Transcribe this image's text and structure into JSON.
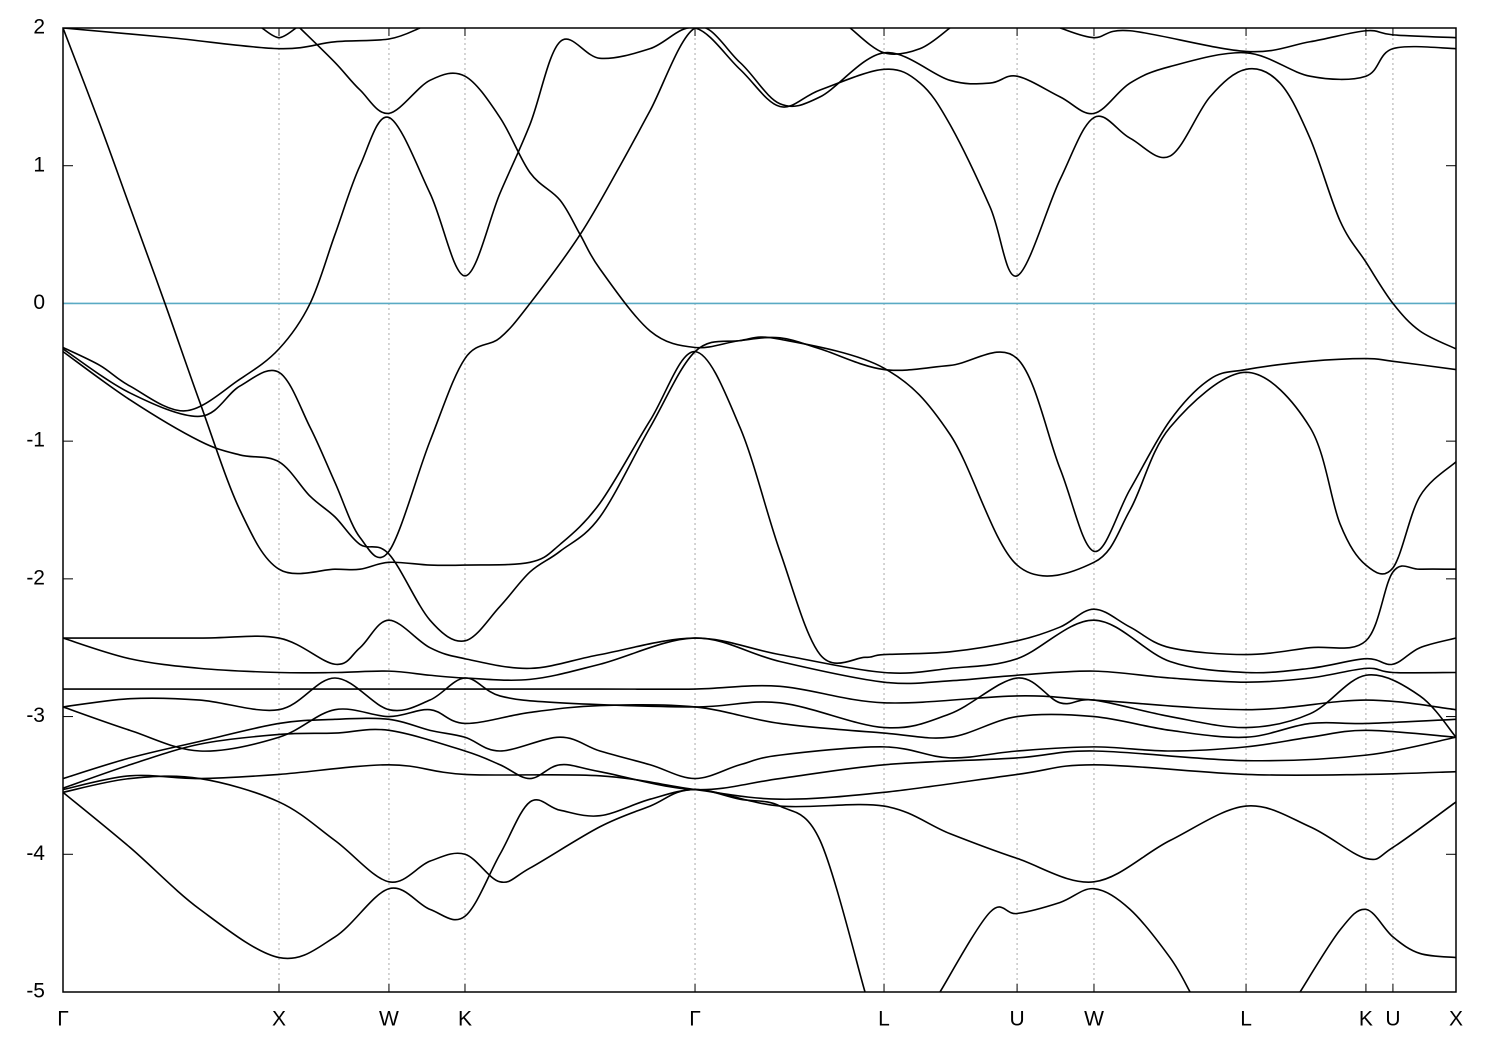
{
  "chart_data": {
    "type": "line",
    "color": "#000000",
    "xlim": [
      0,
      6.449
    ],
    "ylim": [
      -5,
      2
    ],
    "yticks": [
      -5,
      -4,
      -3,
      -2,
      -1,
      0,
      1,
      2
    ],
    "xticks": [
      {
        "value": 0,
        "label": "Γ"
      },
      {
        "value": 1.0,
        "label": "X"
      },
      {
        "value": 1.509,
        "label": "W"
      },
      {
        "value": 1.861,
        "label": "K"
      },
      {
        "value": 2.926,
        "label": "Γ"
      },
      {
        "value": 3.801,
        "label": "L"
      },
      {
        "value": 4.417,
        "label": "U"
      },
      {
        "value": 4.773,
        "label": "W"
      },
      {
        "value": 5.477,
        "label": "L"
      },
      {
        "value": 6.032,
        "label": "K"
      },
      {
        "value": 6.157,
        "label": "U"
      },
      {
        "value": 6.449,
        "label": "X"
      }
    ],
    "xgrid": true,
    "reference_line": {
      "value": 0,
      "color": "#5aaac4"
    },
    "series": [
      {
        "x": [
          0,
          0.171,
          0.31,
          0.472,
          0.634,
          0.819,
          1.0,
          1.259,
          1.375,
          1.509,
          1.699,
          1.861,
          2.162,
          2.301,
          2.486,
          2.718,
          2.926,
          3.134,
          3.319,
          3.505,
          3.713,
          3.801,
          4.106,
          4.417,
          4.616,
          4.773,
          4.94,
          5.125,
          5.477,
          5.773,
          6.032,
          6.157,
          6.282,
          6.449
        ],
        "values": [
          2.0,
          1.3,
          0.7,
          0.0,
          -0.72,
          -1.5,
          -1.93,
          -1.93,
          -1.93,
          -1.88,
          -1.9,
          -1.9,
          -1.88,
          -1.75,
          -1.45,
          -0.85,
          -0.35,
          -0.9,
          -1.8,
          -2.55,
          -2.57,
          -2.55,
          -2.53,
          -2.45,
          -2.35,
          -2.22,
          -2.35,
          -2.5,
          -2.55,
          -2.5,
          -2.45,
          -1.95,
          -1.93,
          -1.93
        ]
      },
      {
        "x": [
          0,
          0.495,
          1.0,
          1.259,
          1.509,
          1.653
        ],
        "values": [
          2.0,
          1.93,
          1.85,
          1.9,
          1.92,
          2.0
        ]
      },
      {
        "x": [
          0.921,
          1.0,
          1.079
        ],
        "values": [
          2.0,
          1.93,
          2.0
        ]
      },
      {
        "x": [
          1.097,
          1.259,
          1.375,
          1.509,
          1.699,
          1.861,
          2.023,
          2.162,
          2.301,
          2.394,
          2.486,
          2.718,
          2.926,
          3.134,
          3.319,
          3.505,
          3.801,
          4.106,
          4.417,
          4.616,
          4.773,
          4.94,
          5.125,
          5.31,
          5.477,
          5.773,
          6.032,
          6.157,
          6.449
        ],
        "values": [
          2.0,
          1.75,
          1.55,
          1.38,
          1.62,
          1.65,
          1.35,
          0.95,
          0.75,
          0.5,
          0.25,
          -0.2,
          -0.32,
          -0.27,
          -0.25,
          -0.33,
          -0.48,
          -0.45,
          -0.4,
          -1.2,
          -1.8,
          -1.35,
          -0.85,
          -0.55,
          -0.48,
          -0.42,
          -0.4,
          -0.42,
          -0.48
        ]
      },
      {
        "x": [
          0,
          0.171,
          0.31,
          0.565,
          0.819,
          1.0,
          1.144,
          1.259,
          1.375,
          1.509,
          1.699,
          1.861,
          2.023,
          2.162,
          2.301,
          2.486,
          2.718,
          2.926,
          3.134,
          3.319,
          3.505,
          3.801,
          3.968,
          4.106,
          4.292,
          4.417,
          4.616,
          4.773,
          4.94,
          5.125,
          5.31,
          5.477,
          5.634,
          5.773,
          5.912,
          6.032,
          6.157,
          6.282,
          6.449
        ],
        "values": [
          -0.32,
          -0.45,
          -0.6,
          -0.78,
          -0.55,
          -0.33,
          0.0,
          0.5,
          1.0,
          1.35,
          0.8,
          0.2,
          0.8,
          1.3,
          1.9,
          1.78,
          1.85,
          2.0,
          1.7,
          1.43,
          1.55,
          1.7,
          1.6,
          1.3,
          0.7,
          0.2,
          0.9,
          1.35,
          1.2,
          1.07,
          1.5,
          1.7,
          1.6,
          1.2,
          0.6,
          0.3,
          0.0,
          -0.2,
          -0.33
        ]
      },
      {
        "x": [
          0,
          0.31,
          0.634,
          0.819,
          1.0,
          1.144,
          1.259,
          1.375,
          1.509,
          1.699,
          1.861,
          2.023,
          2.162,
          2.394,
          2.579,
          2.718,
          2.926,
          3.134,
          3.319,
          3.505,
          3.801,
          4.106,
          4.292,
          4.417,
          4.616,
          4.773,
          4.94,
          5.125,
          5.477,
          5.773,
          6.032,
          6.157,
          6.449
        ],
        "values": [
          -0.33,
          -0.65,
          -0.82,
          -0.6,
          -0.5,
          -0.9,
          -1.3,
          -1.7,
          -1.8,
          -1.0,
          -0.4,
          -0.25,
          0.0,
          0.5,
          1.0,
          1.4,
          2.0,
          1.75,
          1.45,
          1.5,
          1.82,
          1.62,
          1.6,
          1.65,
          1.5,
          1.38,
          1.6,
          1.72,
          1.82,
          1.65,
          1.65,
          1.85,
          1.85
        ]
      },
      {
        "x": [
          0,
          0.31,
          0.634,
          0.819,
          1.0,
          1.144,
          1.259,
          1.375,
          1.509,
          1.699,
          1.861,
          2.023,
          2.162,
          2.301,
          2.486,
          2.718,
          2.926,
          3.134,
          3.319,
          3.801,
          4.106,
          4.417,
          4.773,
          4.94,
          5.125,
          5.477,
          5.773,
          5.912,
          6.032,
          6.157,
          6.282,
          6.449
        ],
        "values": [
          -0.35,
          -0.7,
          -1.0,
          -1.1,
          -1.15,
          -1.4,
          -1.55,
          -1.75,
          -1.82,
          -2.3,
          -2.45,
          -2.2,
          -1.95,
          -1.8,
          -1.55,
          -0.9,
          -0.35,
          -0.27,
          -0.26,
          -0.47,
          -0.95,
          -1.9,
          -1.88,
          -1.5,
          -0.9,
          -0.5,
          -0.9,
          -1.6,
          -1.9,
          -1.92,
          -1.4,
          -1.15
        ]
      },
      {
        "x": [
          4.616,
          4.773,
          4.94,
          5.477,
          5.773,
          6.032,
          6.157,
          6.449
        ],
        "values": [
          2.0,
          1.93,
          1.98,
          1.83,
          1.9,
          1.98,
          1.95,
          1.93
        ]
      },
      {
        "x": [
          3.644,
          3.801,
          3.968,
          4.106
        ],
        "values": [
          2.0,
          1.82,
          1.85,
          2.0
        ]
      },
      {
        "x": [
          0,
          0.634,
          1.0,
          1.259,
          1.375,
          1.509,
          1.699,
          1.861,
          2.162,
          2.486,
          2.926,
          3.319,
          3.801,
          4.106,
          4.417,
          4.773,
          5.125,
          5.477,
          5.773,
          6.032,
          6.157,
          6.282,
          6.449
        ],
        "values": [
          -2.43,
          -2.43,
          -2.43,
          -2.62,
          -2.5,
          -2.3,
          -2.5,
          -2.58,
          -2.65,
          -2.55,
          -2.43,
          -2.55,
          -2.68,
          -2.65,
          -2.58,
          -2.3,
          -2.6,
          -2.68,
          -2.65,
          -2.58,
          -2.62,
          -2.5,
          -2.43
        ]
      },
      {
        "x": [
          0,
          0.31,
          0.634,
          1.0,
          1.259,
          1.509,
          1.699,
          1.861,
          2.162,
          2.486,
          2.926,
          3.319,
          3.801,
          4.106,
          4.417,
          4.773,
          5.125,
          5.477,
          5.773,
          6.032,
          6.157,
          6.449
        ],
        "values": [
          -2.43,
          -2.58,
          -2.65,
          -2.68,
          -2.68,
          -2.67,
          -2.7,
          -2.72,
          -2.73,
          -2.62,
          -2.43,
          -2.6,
          -2.75,
          -2.74,
          -2.7,
          -2.67,
          -2.72,
          -2.75,
          -2.72,
          -2.65,
          -2.68,
          -2.68
        ]
      },
      {
        "x": [
          0,
          1.0,
          1.509,
          1.861,
          2.486,
          2.926,
          3.319,
          3.801,
          4.417,
          4.773,
          5.477,
          6.032,
          6.449
        ],
        "values": [
          -2.8,
          -2.8,
          -2.8,
          -2.8,
          -2.8,
          -2.8,
          -2.78,
          -2.9,
          -2.85,
          -2.88,
          -2.95,
          -2.88,
          -2.95
        ]
      },
      {
        "x": [
          0,
          0.31,
          0.634,
          1.0,
          1.259,
          1.509,
          1.699,
          1.861,
          2.023,
          2.301,
          2.926,
          3.319,
          3.801,
          4.106,
          4.417,
          4.616,
          4.773,
          5.125,
          5.477,
          5.773,
          6.032,
          6.282,
          6.449
        ],
        "values": [
          -2.93,
          -2.87,
          -2.88,
          -2.95,
          -2.72,
          -2.95,
          -2.88,
          -2.72,
          -2.85,
          -2.9,
          -2.93,
          -2.9,
          -3.08,
          -2.98,
          -2.72,
          -2.9,
          -2.88,
          -3.0,
          -3.08,
          -2.98,
          -2.7,
          -2.85,
          -3.15
        ]
      },
      {
        "x": [
          0,
          0.31,
          0.634,
          1.0,
          1.259,
          1.509,
          1.699,
          1.861,
          2.162,
          2.486,
          2.926,
          3.319,
          3.801,
          4.106,
          4.417,
          4.773,
          5.125,
          5.477,
          5.773,
          6.032,
          6.449
        ],
        "values": [
          -2.93,
          -3.1,
          -3.25,
          -3.15,
          -2.95,
          -3.0,
          -2.95,
          -3.05,
          -2.97,
          -2.92,
          -2.93,
          -3.05,
          -3.12,
          -3.15,
          -3.0,
          -3.0,
          -3.1,
          -3.15,
          -3.05,
          -3.05,
          -3.02
        ]
      },
      {
        "x": [
          0,
          0.31,
          0.634,
          1.0,
          1.259,
          1.509,
          1.699,
          1.861,
          2.023,
          2.301,
          2.486,
          2.718,
          2.926,
          3.134,
          3.319,
          3.801,
          4.106,
          4.417,
          4.773,
          5.125,
          5.477,
          5.773,
          6.032,
          6.449
        ],
        "values": [
          -3.45,
          -3.3,
          -3.18,
          -3.05,
          -3.02,
          -3.02,
          -3.1,
          -3.15,
          -3.25,
          -3.15,
          -3.25,
          -3.35,
          -3.45,
          -3.35,
          -3.28,
          -3.22,
          -3.3,
          -3.25,
          -3.22,
          -3.25,
          -3.22,
          -3.15,
          -3.1,
          -3.15
        ]
      },
      {
        "x": [
          0,
          0.31,
          0.634,
          1.0,
          1.259,
          1.509,
          1.861,
          2.023,
          2.162,
          2.301,
          2.486,
          2.926,
          3.319,
          3.801,
          4.417,
          4.773,
          5.477,
          6.032,
          6.449
        ],
        "values": [
          -3.52,
          -3.35,
          -3.2,
          -3.13,
          -3.12,
          -3.1,
          -3.25,
          -3.35,
          -3.45,
          -3.35,
          -3.4,
          -3.53,
          -3.45,
          -3.35,
          -3.3,
          -3.25,
          -3.32,
          -3.28,
          -3.15
        ]
      },
      {
        "x": [
          0,
          0.31,
          0.634,
          1.0,
          1.509,
          1.861,
          2.486,
          2.926,
          3.319,
          3.801,
          4.417,
          4.773,
          5.477,
          6.032,
          6.449
        ],
        "values": [
          -3.53,
          -3.43,
          -3.45,
          -3.42,
          -3.35,
          -3.42,
          -3.43,
          -3.53,
          -3.6,
          -3.55,
          -3.42,
          -3.35,
          -3.42,
          -3.42,
          -3.4
        ]
      },
      {
        "x": [
          0,
          0.31,
          0.634,
          1.0,
          1.259,
          1.509,
          1.699,
          1.861,
          2.023,
          2.162,
          2.486,
          2.718,
          2.926,
          3.319,
          3.801,
          4.106,
          4.417,
          4.773,
          5.125,
          5.477,
          5.773,
          6.032,
          6.157,
          6.449
        ],
        "values": [
          -3.55,
          -3.45,
          -3.45,
          -3.62,
          -3.9,
          -4.2,
          -4.05,
          -4.0,
          -4.2,
          -4.1,
          -3.8,
          -3.65,
          -3.53,
          -3.65,
          -3.65,
          -3.85,
          -4.03,
          -4.2,
          -3.9,
          -3.65,
          -3.8,
          -4.03,
          -3.95,
          -3.62
        ]
      },
      {
        "x": [
          0,
          0.31,
          0.634,
          1.0,
          1.259,
          1.509,
          1.699,
          1.861,
          2.023,
          2.162,
          2.301,
          2.486,
          2.718,
          2.926,
          3.134,
          3.319,
          3.505,
          3.713
        ],
        "values": [
          -3.55,
          -3.95,
          -4.4,
          -4.75,
          -4.6,
          -4.25,
          -4.4,
          -4.45,
          -4.0,
          -3.62,
          -3.68,
          -3.72,
          -3.6,
          -3.53,
          -3.6,
          -3.65,
          -3.9,
          -5.0
        ]
      },
      {
        "x": [
          4.06,
          4.292,
          4.417,
          4.616,
          4.773,
          4.94,
          5.125,
          5.218
        ],
        "values": [
          -5.0,
          -4.42,
          -4.43,
          -4.35,
          -4.25,
          -4.4,
          -4.75,
          -5.0
        ]
      },
      {
        "x": [
          5.727,
          5.912,
          6.032,
          6.157,
          6.282,
          6.449
        ],
        "values": [
          -5.0,
          -4.55,
          -4.4,
          -4.6,
          -4.72,
          -4.75
        ]
      }
    ]
  }
}
